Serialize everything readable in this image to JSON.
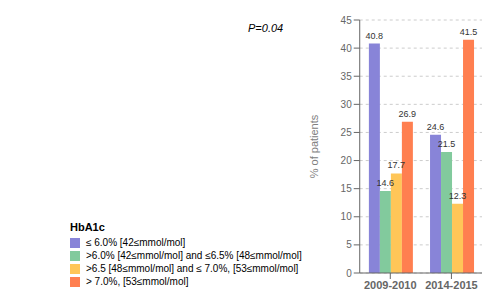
{
  "chart_data": {
    "type": "bar",
    "categories": [
      "2009-2010",
      "2014-2015"
    ],
    "series": [
      {
        "name": "≤ 6.0% [42≤mmol/mol]",
        "color": "#8884d8",
        "values": [
          40.8,
          24.6
        ]
      },
      {
        "name": ">6.0% [42≤mmol/mol] and ≤6.5% [48≤mmol/mol]",
        "color": "#82ca9d",
        "values": [
          14.6,
          21.5
        ]
      },
      {
        "name": ">6.5 [48≤mmol/mol] and ≤ 7.0%, [53≤mmol/mol]",
        "color": "#ffc658",
        "values": [
          17.7,
          12.3
        ]
      },
      {
        "name": "> 7.0%, [53≤mmol/mol]",
        "color": "#ff7f50",
        "values": [
          26.9,
          41.5
        ]
      }
    ],
    "ylabel": "% of patients",
    "ylim": [
      0,
      45
    ],
    "yticks": [
      0,
      5,
      10,
      15,
      20,
      25,
      30,
      35,
      40,
      45
    ],
    "annotations": [
      "P=0.04"
    ],
    "legend_title": "HbA1c",
    "legend": "bottom",
    "grid": true,
    "data_labels": true
  }
}
